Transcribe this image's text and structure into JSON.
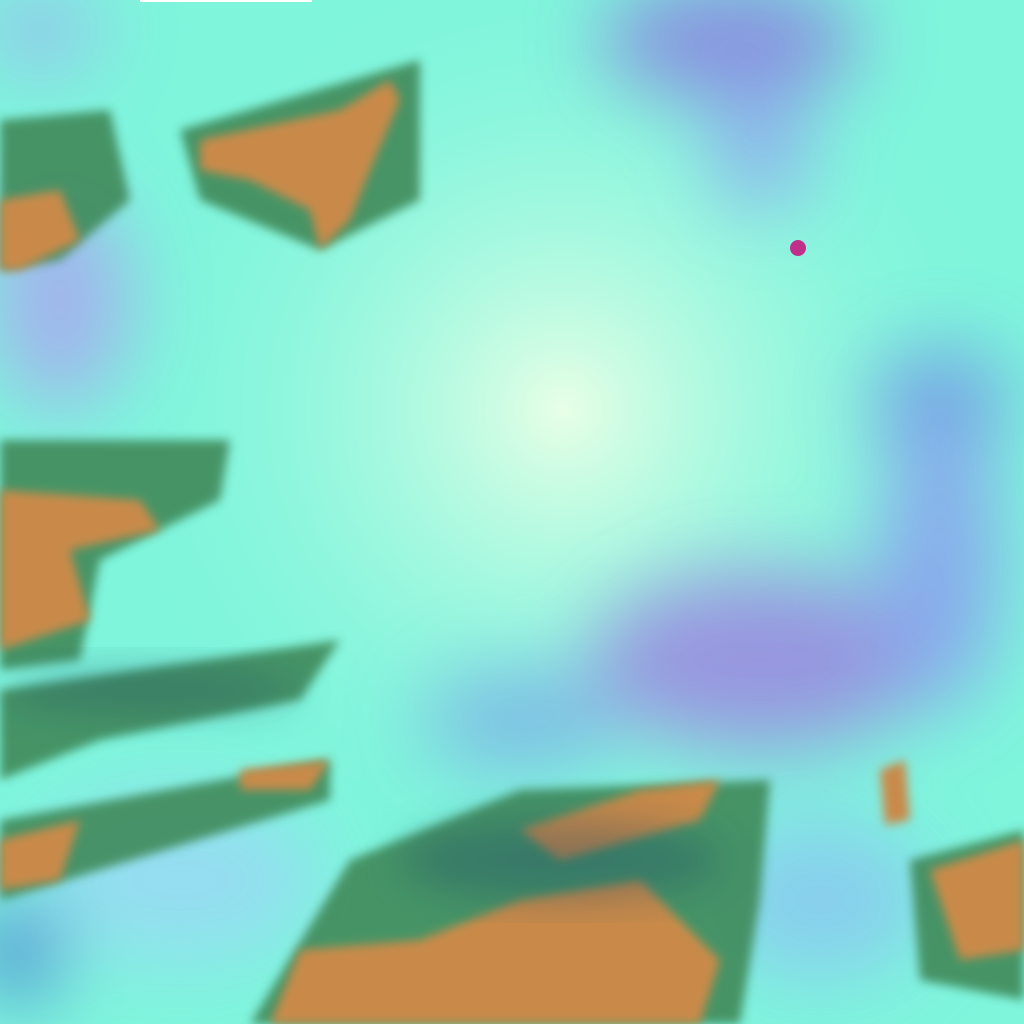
{
  "image": {
    "kind": "false-color satellite imagery",
    "colors": {
      "cloud_cyan": "#7ff5dc",
      "cloud_pale": "#d8ffe8",
      "high_cloud_blue": "#7f9cf0",
      "high_cloud_violet": "#9a86e0",
      "ground_orange": "#c98a4a",
      "vegetation_green": "#3f8a5a",
      "shadow_dark": "#1d4a6a",
      "hot_spot_magenta": "#c0308a"
    }
  }
}
